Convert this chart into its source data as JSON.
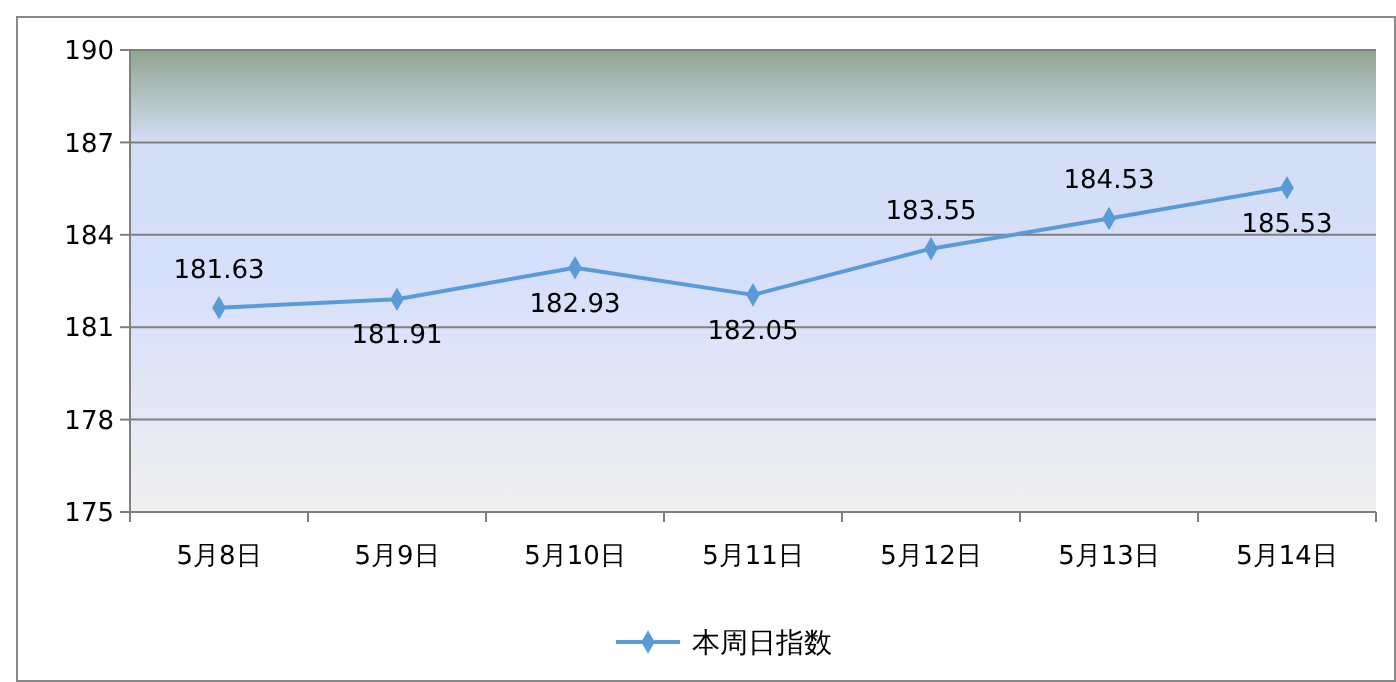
{
  "chart_data": {
    "type": "line",
    "categories": [
      "5月8日",
      "5月9日",
      "5月10日",
      "5月11日",
      "5月12日",
      "5月13日",
      "5月14日"
    ],
    "series": [
      {
        "name": "本周日指数",
        "color": "#5b9bd5",
        "values": [
          181.63,
          181.91,
          182.93,
          182.05,
          183.55,
          184.53,
          185.53
        ]
      }
    ],
    "ylim": [
      175,
      190
    ],
    "yticks": [
      175,
      178,
      181,
      184,
      187,
      190
    ],
    "grid": "y",
    "legend": "bottom",
    "marker": "diamond",
    "line_style": "solid",
    "data_labels": true
  }
}
